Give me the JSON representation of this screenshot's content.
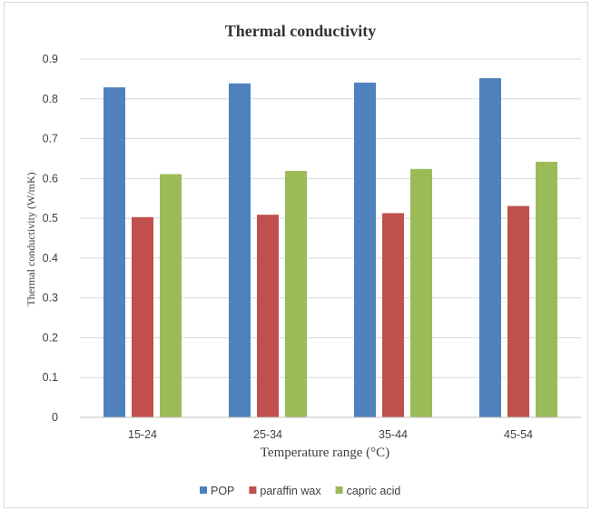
{
  "chart_data": {
    "type": "bar",
    "title": "Thermal conductivity",
    "xlabel": "Temperature range (°C)",
    "ylabel": "Thermal conductivity (W/mK)",
    "categories": [
      "15-24",
      "25-34",
      "35-44",
      "45-54"
    ],
    "ylim": [
      0,
      0.9
    ],
    "yticks": [
      "0",
      "0.1",
      "0.2",
      "0.3",
      "0.4",
      "0.5",
      "0.6",
      "0.7",
      "0.8",
      "0.9"
    ],
    "grid": true,
    "legend_position": "bottom",
    "series": [
      {
        "name": "POP",
        "color": "#4f81bd",
        "values": [
          0.829,
          0.839,
          0.841,
          0.852
        ]
      },
      {
        "name": "paraffin wax",
        "color": "#c0504d",
        "values": [
          0.503,
          0.509,
          0.513,
          0.531
        ]
      },
      {
        "name": "capric acid",
        "color": "#9bbb59",
        "values": [
          0.611,
          0.619,
          0.624,
          0.642
        ]
      }
    ]
  }
}
